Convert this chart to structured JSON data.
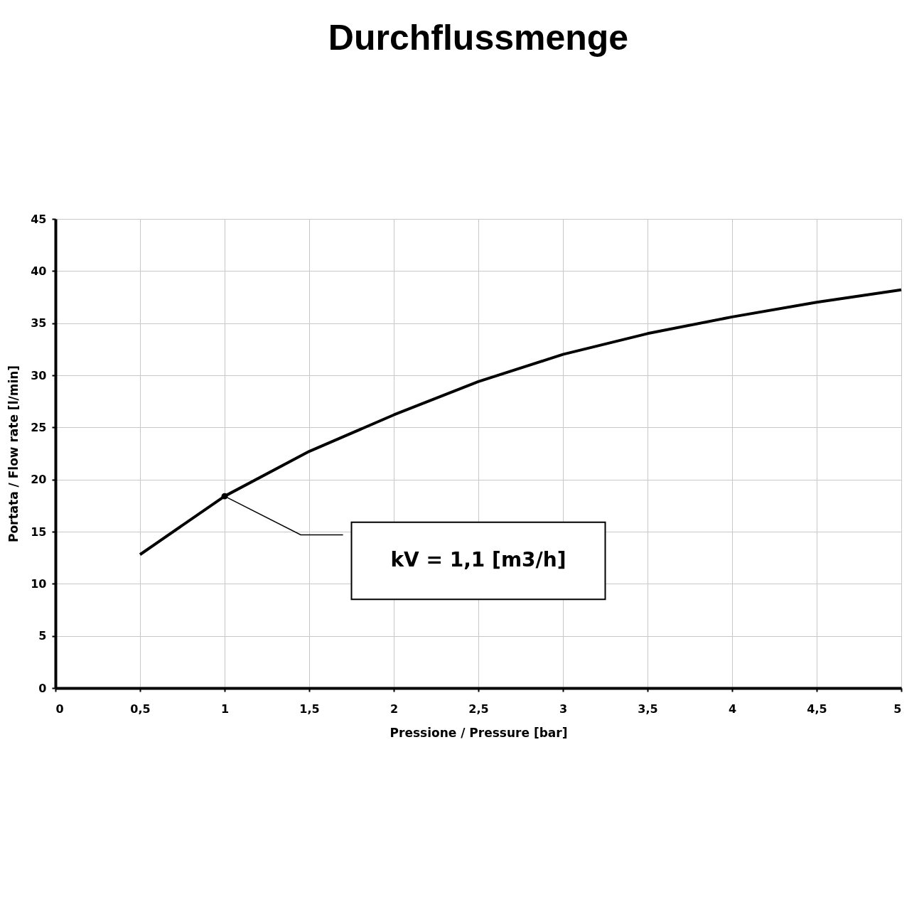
{
  "chart_data": {
    "type": "line",
    "title": "Durchflussmenge",
    "xlabel": "Pressione / Pressure [bar]",
    "ylabel": "Portata / Flow rate [l/min]",
    "x": [
      0.5,
      1,
      1.5,
      2,
      2.5,
      3,
      3.5,
      4,
      4.5,
      5
    ],
    "series": [
      {
        "color": "#000000",
        "values": [
          12.8,
          18.4,
          22.7,
          26.2,
          29.4,
          32.0,
          34.0,
          35.6,
          37.0,
          38.2
        ]
      }
    ],
    "xlim": [
      0,
      5
    ],
    "ylim": [
      0,
      45
    ],
    "xticks": [
      0,
      {
        "value": 0.5,
        "label": "0,5"
      },
      1,
      {
        "value": 1.5,
        "label": "1,5"
      },
      2,
      {
        "value": 2.5,
        "label": "2,5"
      },
      3,
      {
        "value": 3.5,
        "label": "3,5"
      },
      4,
      {
        "value": 4.5,
        "label": "4,5"
      },
      5
    ],
    "yticks": [
      0,
      5,
      10,
      15,
      20,
      25,
      30,
      35,
      40,
      45
    ],
    "annotations": [
      "kV = 1,1 [m3/h]"
    ],
    "grid": true,
    "marker": "none",
    "line_style": "solid"
  }
}
